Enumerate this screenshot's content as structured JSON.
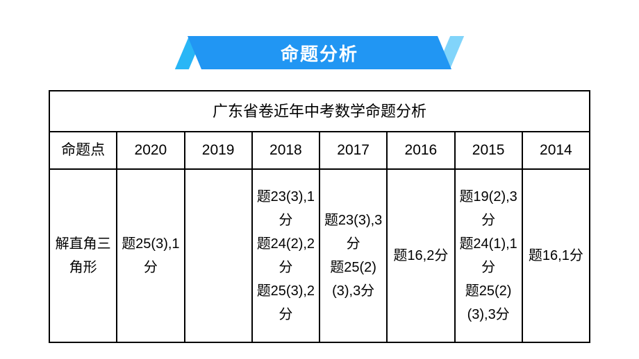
{
  "banner": {
    "title": "命题分析",
    "bg_color": "#2196f3",
    "accent_left_color": "#29b6f6",
    "accent_right_color": "#81d4fa",
    "title_color": "#ffffff",
    "title_fontsize": 26
  },
  "table": {
    "title": "广东省卷近年中考数学命题分析",
    "border_color": "#000000",
    "text_color": "#000000",
    "fontsize": 21,
    "columns": [
      "命题点",
      "2020",
      "2019",
      "2018",
      "2017",
      "2016",
      "2015",
      "2014"
    ],
    "rows": [
      {
        "topic": "解直角三角形",
        "cells": [
          "题25(3),1分",
          "",
          "题23(3),1分\n题24(2),2分\n题25(3),2分",
          "题23(3),3分\n题25(2)(3),3分",
          "题16,2分",
          "题19(2),3分\n题24(1),1分\n题25(2)(3),3分",
          "题16,1分"
        ]
      }
    ]
  }
}
